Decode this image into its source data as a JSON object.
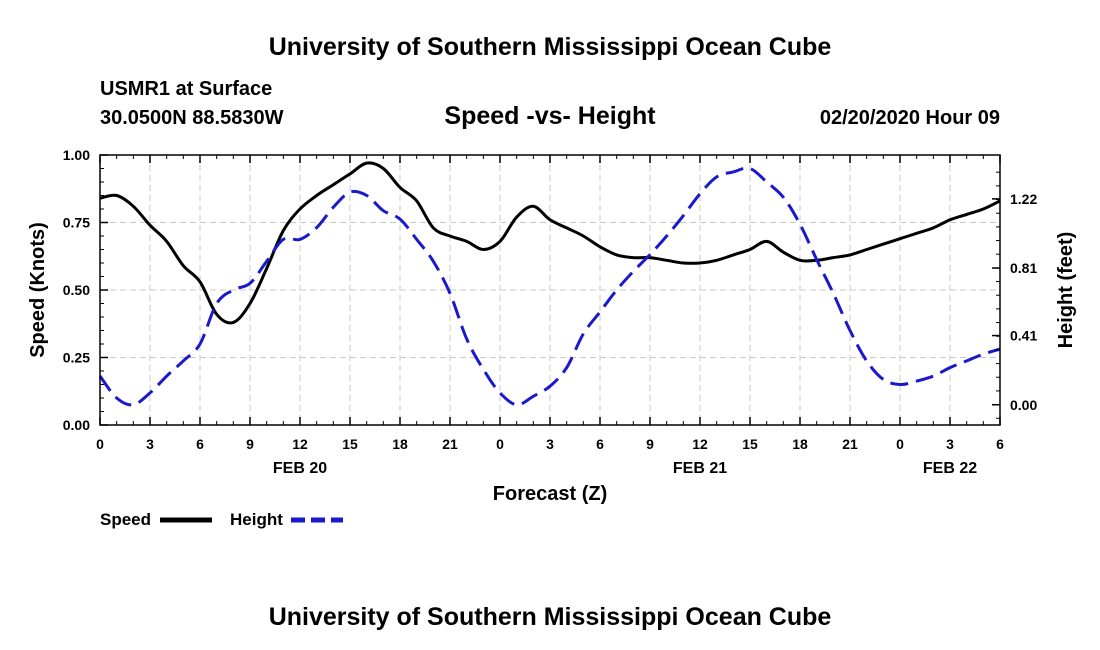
{
  "header": {
    "title_top": "University of Southern Mississippi Ocean Cube",
    "title_bottom": "University of Southern Mississippi Ocean Cube",
    "station": "USMR1 at Surface",
    "coordinates": "30.0500N 88.5830W",
    "chart_title": "Speed -vs- Height",
    "datetime": "02/20/2020 Hour 09"
  },
  "colors": {
    "speed": "#000000",
    "height": "#1a1acc",
    "grid": "#c8c8c8"
  },
  "chart_data": {
    "type": "line",
    "title": "Speed -vs- Height",
    "xlabel": "Forecast (Z)",
    "ylabel": "Speed (Knots)",
    "y2label": "Height (feet)",
    "x_range_hours": [
      0,
      54
    ],
    "x_tick_labels": [
      "0",
      "3",
      "6",
      "9",
      "12",
      "15",
      "18",
      "21",
      "0",
      "3",
      "6",
      "9",
      "12",
      "15",
      "18",
      "21",
      "0",
      "3",
      "6"
    ],
    "date_labels": [
      {
        "label": "FEB 20",
        "hour": 12
      },
      {
        "label": "FEB 21",
        "hour": 36
      },
      {
        "label": "FEB 22",
        "hour": 51
      }
    ],
    "ylim": [
      0,
      1.0
    ],
    "y_ticks": [
      "0.00",
      "0.25",
      "0.50",
      "0.75",
      "1.00"
    ],
    "y2lim": [
      -0.12,
      1.48
    ],
    "y2_ticks": [
      "0.00",
      "0.41",
      "0.81",
      "1.22"
    ],
    "grid": true,
    "legend_position": "bottom-left",
    "series": [
      {
        "name": "Speed",
        "axis": "left",
        "style": "solid",
        "x": [
          0,
          1,
          2,
          3,
          4,
          5,
          6,
          7,
          8,
          9,
          10,
          11,
          12,
          13,
          14,
          15,
          16,
          17,
          18,
          19,
          20,
          21,
          22,
          23,
          24,
          25,
          26,
          27,
          28,
          29,
          30,
          31,
          32,
          33,
          34,
          35,
          36,
          37,
          38,
          39,
          40,
          41,
          42,
          43,
          44,
          45,
          46,
          47,
          48,
          49,
          50,
          51,
          52,
          53,
          54
        ],
        "values": [
          0.84,
          0.85,
          0.81,
          0.74,
          0.68,
          0.59,
          0.53,
          0.41,
          0.38,
          0.45,
          0.58,
          0.72,
          0.8,
          0.85,
          0.89,
          0.93,
          0.97,
          0.95,
          0.88,
          0.83,
          0.73,
          0.7,
          0.68,
          0.65,
          0.68,
          0.77,
          0.81,
          0.76,
          0.73,
          0.7,
          0.66,
          0.63,
          0.62,
          0.62,
          0.61,
          0.6,
          0.6,
          0.61,
          0.63,
          0.65,
          0.68,
          0.64,
          0.61,
          0.61,
          0.62,
          0.63,
          0.65,
          0.67,
          0.69,
          0.71,
          0.73,
          0.76,
          0.78,
          0.8,
          0.83
        ]
      },
      {
        "name": "Height",
        "axis": "right",
        "style": "dashed",
        "x": [
          0,
          1,
          2,
          3,
          4,
          5,
          6,
          7,
          8,
          9,
          10,
          11,
          12,
          13,
          14,
          15,
          16,
          17,
          18,
          19,
          20,
          21,
          22,
          23,
          24,
          25,
          26,
          27,
          28,
          29,
          30,
          31,
          32,
          33,
          34,
          35,
          36,
          37,
          38,
          39,
          40,
          41,
          42,
          43,
          44,
          45,
          46,
          47,
          48,
          49,
          50,
          51,
          52,
          53,
          54
        ],
        "values": [
          0.17,
          0.04,
          0.0,
          0.07,
          0.17,
          0.26,
          0.36,
          0.6,
          0.68,
          0.72,
          0.85,
          0.98,
          0.98,
          1.05,
          1.17,
          1.26,
          1.24,
          1.15,
          1.1,
          0.98,
          0.85,
          0.66,
          0.39,
          0.21,
          0.07,
          0.0,
          0.05,
          0.11,
          0.22,
          0.42,
          0.55,
          0.68,
          0.79,
          0.89,
          1.0,
          1.12,
          1.25,
          1.35,
          1.38,
          1.4,
          1.32,
          1.23,
          1.07,
          0.86,
          0.66,
          0.44,
          0.26,
          0.15,
          0.12,
          0.14,
          0.17,
          0.22,
          0.26,
          0.3,
          0.33
        ]
      }
    ]
  }
}
